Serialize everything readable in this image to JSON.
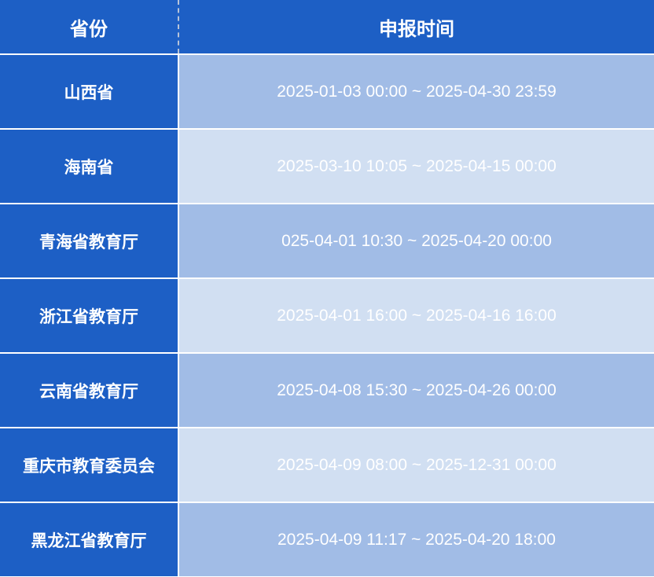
{
  "header": {
    "province": "省份",
    "time": "申报时间"
  },
  "colors": {
    "header_bg": "#1d5fc5",
    "row_dark": "#a1bce6",
    "row_light": "#d1dff2"
  },
  "rows": [
    {
      "province": "山西省",
      "time": "2025-01-03 00:00 ~ 2025-04-30 23:59"
    },
    {
      "province": "海南省",
      "time": "2025-03-10 10:05 ~ 2025-04-15 00:00"
    },
    {
      "province": "青海省教育厅",
      "time": "025-04-01 10:30 ~ 2025-04-20 00:00"
    },
    {
      "province": "浙江省教育厅",
      "time": "2025-04-01 16:00 ~ 2025-04-16 16:00"
    },
    {
      "province": "云南省教育厅",
      "time": "2025-04-08 15:30 ~ 2025-04-26 00:00"
    },
    {
      "province": "重庆市教育委员会",
      "time": "2025-04-09 08:00 ~ 2025-12-31 00:00"
    },
    {
      "province": "黑龙江省教育厅",
      "time": "2025-04-09 11:17 ~ 2025-04-20 18:00"
    }
  ]
}
